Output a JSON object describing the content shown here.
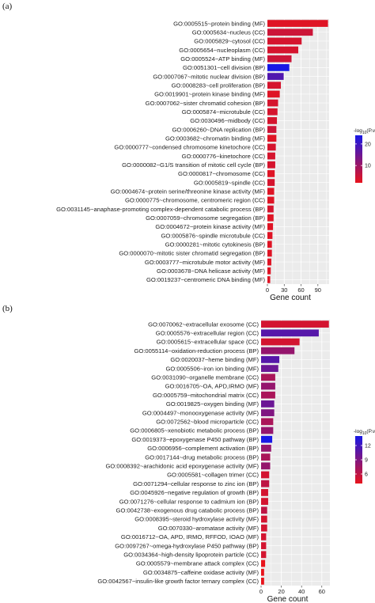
{
  "chart_data": [
    {
      "type": "bar",
      "orientation": "horizontal",
      "panel_label": "(a)",
      "xlabel": "Gene count",
      "xticks": [
        0,
        30,
        60,
        90
      ],
      "xlim": [
        0,
        110
      ],
      "grid": true,
      "legend": {
        "title": "-log10(P.value)",
        "ticks": [
          10,
          20
        ],
        "range": [
          2,
          24
        ],
        "placement": "right"
      },
      "categories": [
        "GO:0005515~protein binding (MF)",
        "GO:0005634~nucleus (CC)",
        "GO:0005829~cytosol (CC)",
        "GO:0005654~nucleoplasm (CC)",
        "GO:0005524~ATP binding (MF)",
        "GO:0051301~cell division (BP)",
        "GO:0007067~mitotic nuclear division (BP)",
        "GO:0008283~cell proliferation (BP)",
        "GO:0019901~protein kinase binding (MF)",
        "GO:0007062~sister chromatid cohesion (BP)",
        "GO:0005874~microtubule (CC)",
        "GO:0030496~midbody (CC)",
        "GO:0006260~DNA replication (BP)",
        "GO:0003682~chromatin binding (MF)",
        "GO:0000777~condensed chromosome kinetochore (CC)",
        "GO:0000776~kinetochore (CC)",
        "GO:0000082~G1/S transition of mitotic cell cycle (BP)",
        "GO:0000817~chromosome (CC)",
        "GO:0005819~spindle (CC)",
        "GO:0004674~protein serine/threonine kinase activity (MF)",
        "GO:0000775~chromosome, centromeric region (CC)",
        "GO:0031145~anaphase-promoting complex-dependent catabolic process (BP)",
        "GO:0007059~chromosome segregation (BP)",
        "GO:0004672~protein kinase activity (MF)",
        "GO:0005876~spindle microtubule (CC)",
        "GO:0000281~mitotic cytokinesis (BP)",
        "GO:0000070~mitotic sister chromatid segregation (BP)",
        "GO:0003777~microtubule motor activity (MF)",
        "GO:0003678~DNA helicase activity (MF)",
        "GO:0019237~centromeric DNA binding (MF)"
      ],
      "values": [
        108,
        81,
        61,
        55,
        43,
        39,
        29,
        24,
        22,
        19,
        18,
        17,
        16,
        16,
        15,
        14,
        14,
        13,
        13,
        12,
        12,
        11,
        11,
        10,
        9,
        8,
        8,
        7,
        6,
        5
      ],
      "pvalue_neglog10": [
        3,
        5,
        4,
        4,
        5,
        24,
        18,
        4,
        3,
        4,
        4,
        4,
        5,
        3,
        4,
        4,
        4,
        3,
        4,
        3,
        3,
        4,
        3,
        3,
        3,
        3,
        3,
        3,
        3,
        3
      ]
    },
    {
      "type": "bar",
      "orientation": "horizontal",
      "panel_label": "(b)",
      "xlabel": "Gene count",
      "xticks": [
        0,
        20,
        40,
        60
      ],
      "xlim": [
        0,
        68
      ],
      "grid": true,
      "legend": {
        "title": "-log10(P.value)",
        "ticks": [
          6,
          9,
          12
        ],
        "range": [
          4,
          14
        ],
        "placement": "right"
      },
      "categories": [
        "GO:0070062~extracellular exosome (CC)",
        "GO:0005576~extracellular region (CC)",
        "GO:0005615~extracellular space (CC)",
        "GO:0055114~oxidation-reduction process (BP)",
        "GO:0020037~heme binding (MF)",
        "GO:0005506~iron ion binding (MF)",
        "GO:0031090~organelle membrane (CC)",
        "GO:0016705~OA, APD,IRMO (MF)",
        "GO:0005759~mitochondrial matrix (CC)",
        "GO:0019825~oxygen binding (MF)",
        "GO:0004497~monooxygenase activity (MF)",
        "GO:0072562~blood microparticle (CC)",
        "GO:0006805~xenobiotic metabolic process (BP)",
        "GO:0019373~epoxygenase P450 pathway (BP)",
        "GO:0006956~complement activation (BP)",
        "GO:0017144~drug metabolic process (BP)",
        "GO:0008392~arachidonic acid epoxygenase activity (MF)",
        "GO:0005581~collagen trimer (CC)",
        "GO:0071294~cellular response to zinc ion (BP)",
        "GO:0045926~negative regulation of growth (BP)",
        "GO:0071276~cellular response to cadmium ion (BP)",
        "GO:0042738~exogenous drug catabolic process (BP)",
        "GO:0008395~steroid hydroxylase activity (MF)",
        "GO:0070330~aromatase activity (MF)",
        "GO:0016712~OA, APD, IRMO, RFFOD, IOAO (MF)",
        "GO:0097267~omega-hydroxylase P450 pathway (BP)",
        "GO:0034364~high-density lipoprotein particle (CC)",
        "GO:0005579~membrane attack complex (CC)",
        "GO:0034875~caffeine oxidase activity (MF)",
        "GO:0042567~insulin-like growth factor ternary complex (CC)"
      ],
      "values": [
        67,
        57,
        38,
        33,
        18,
        17,
        14,
        14,
        14,
        13,
        13,
        12,
        12,
        11,
        10,
        9,
        9,
        8,
        8,
        7,
        7,
        6,
        6,
        6,
        5,
        5,
        5,
        4,
        3,
        3
      ],
      "pvalue_neglog10": [
        5,
        11,
        5,
        8,
        11,
        10,
        7,
        8,
        7,
        10,
        9,
        7,
        8,
        14,
        8,
        7,
        8,
        5,
        6,
        5,
        5,
        6,
        5,
        5,
        5,
        5,
        5,
        4,
        4,
        4
      ]
    }
  ]
}
